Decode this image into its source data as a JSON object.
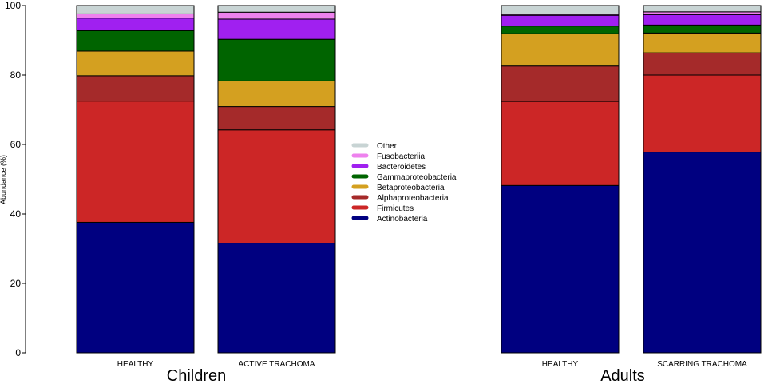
{
  "chart_data": {
    "type": "bar",
    "stacked": true,
    "ylabel": "Abundance (%)",
    "ylim": [
      0,
      100
    ],
    "yticks": [
      0,
      20,
      40,
      60,
      80,
      100
    ],
    "categories": [
      "HEALTHY",
      "ACTIVE TRACHOMA",
      "HEALTHY",
      "SCARRING TRACHOMA"
    ],
    "groups": [
      {
        "label": "Children",
        "categories": [
          0,
          1
        ]
      },
      {
        "label": "Adults",
        "categories": [
          2,
          3
        ]
      }
    ],
    "series": [
      {
        "name": "Actinobacteria",
        "color": "#000080",
        "values": [
          37.6,
          31.6,
          48.2,
          57.8
        ]
      },
      {
        "name": "Firmicutes",
        "color": "#CC2626",
        "values": [
          34.9,
          32.6,
          24.2,
          22.2
        ]
      },
      {
        "name": "Alphaproteobacteria",
        "color": "#A52A2A",
        "values": [
          7.3,
          6.7,
          10.2,
          6.4
        ]
      },
      {
        "name": "Betaproteobacteria",
        "color": "#D4A020",
        "values": [
          7.1,
          7.4,
          9.3,
          5.7
        ]
      },
      {
        "name": "Gammaproteobacteria",
        "color": "#006400",
        "values": [
          5.9,
          12.0,
          2.2,
          2.3
        ]
      },
      {
        "name": "Bacteroidetes",
        "color": "#A020F0",
        "values": [
          3.6,
          5.8,
          3.1,
          3.0
        ]
      },
      {
        "name": "Fusobacteriia",
        "color": "#EE82EE",
        "values": [
          1.2,
          2.0,
          0.3,
          0.8
        ]
      },
      {
        "name": "Other",
        "color": "#C8D4D4",
        "values": [
          2.4,
          1.9,
          2.5,
          1.8
        ]
      }
    ],
    "legend_order": [
      "Other",
      "Fusobacteriia",
      "Bacteroidetes",
      "Gammaproteobacteria",
      "Betaproteobacteria",
      "Alphaproteobacteria",
      "Firmicutes",
      "Actinobacteria"
    ],
    "legend_position": "center"
  }
}
